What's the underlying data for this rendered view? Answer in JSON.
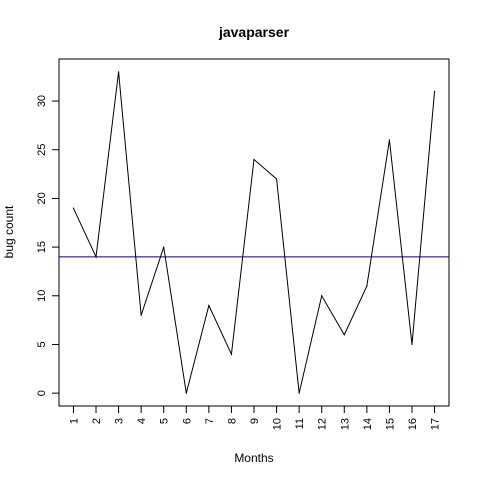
{
  "chart_data": {
    "type": "line",
    "title": "javaparser",
    "xlabel": "Months",
    "ylabel": "bug count",
    "x": [
      1,
      2,
      3,
      4,
      5,
      6,
      7,
      8,
      9,
      10,
      11,
      12,
      13,
      14,
      15,
      16,
      17
    ],
    "x_tick_labels": [
      "1",
      "2",
      "3",
      "4",
      "5",
      "6",
      "7",
      "8",
      "9",
      "10",
      "11",
      "12",
      "13",
      "14",
      "15",
      "16",
      "17"
    ],
    "y_tick_labels": [
      "0",
      "5",
      "10",
      "15",
      "20",
      "25",
      "30"
    ],
    "y_ticks": [
      0,
      5,
      10,
      15,
      20,
      25,
      30
    ],
    "series": [
      {
        "values": [
          19,
          14,
          33,
          8,
          15,
          0,
          9,
          4,
          24,
          22,
          0,
          10,
          6,
          11,
          26,
          5,
          31
        ],
        "color": "#000000"
      }
    ],
    "hline": {
      "y": 14,
      "color": "#000080"
    },
    "xlim": [
      0.36,
      17.64
    ],
    "ylim": [
      -1.32,
      34.32
    ],
    "grid": false,
    "legend": "none"
  }
}
